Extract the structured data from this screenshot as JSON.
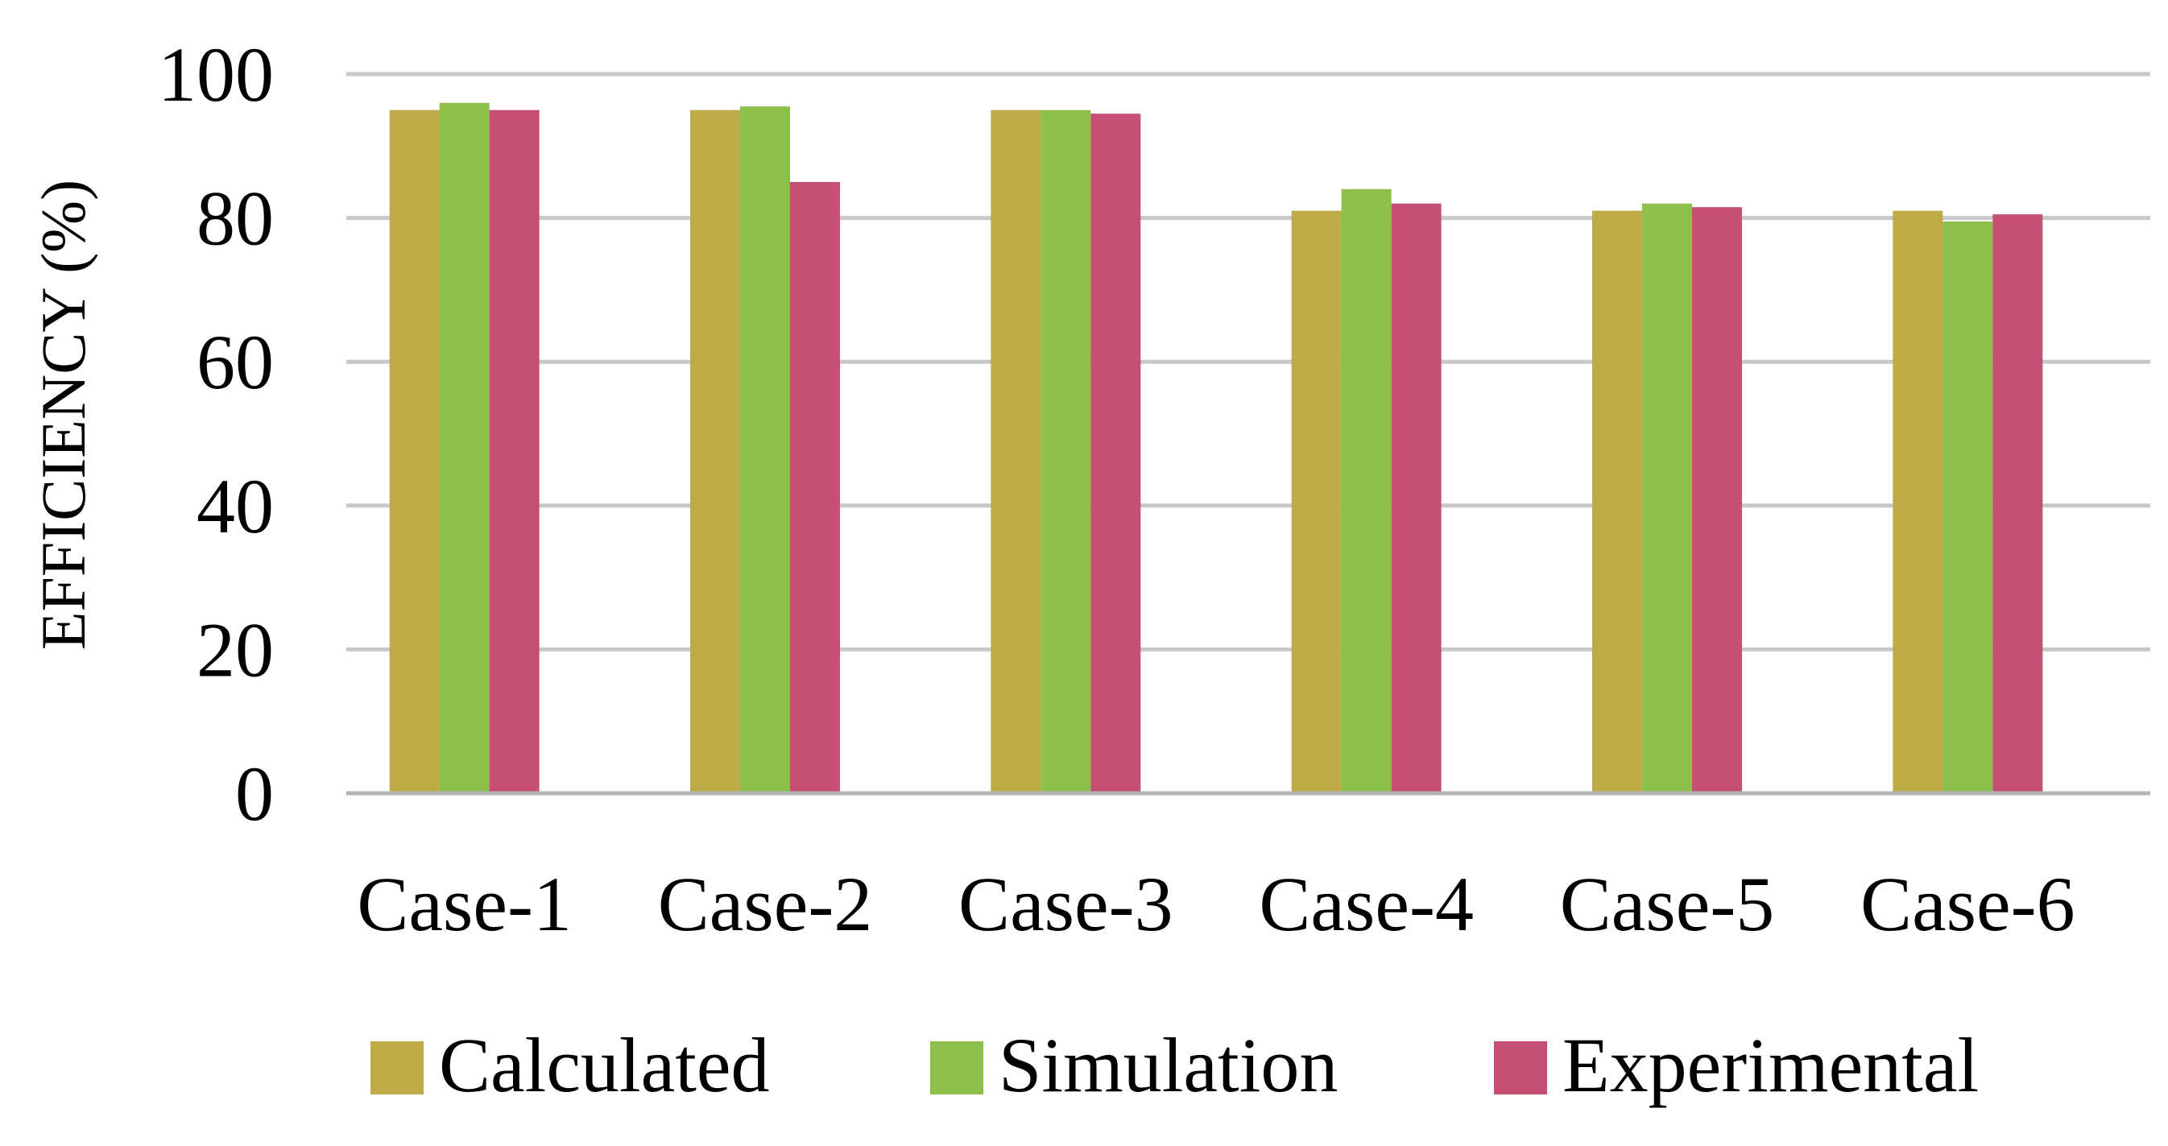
{
  "chart_data": {
    "type": "bar",
    "title": "",
    "xlabel": "",
    "ylabel": "EFFICIENCY (%)",
    "ylim": [
      0,
      100
    ],
    "yticks": [
      0,
      20,
      40,
      60,
      80,
      100
    ],
    "grid": true,
    "legend_position": "bottom",
    "categories": [
      "Case-1",
      "Case-2",
      "Case-3",
      "Case-4",
      "Case-5",
      "Case-6"
    ],
    "series": [
      {
        "name": "Calculated",
        "color": "#bfaa48",
        "values": [
          95,
          95,
          95,
          81,
          81,
          81
        ]
      },
      {
        "name": "Simulation",
        "color": "#8cc04a",
        "values": [
          96,
          95.5,
          95,
          84,
          82,
          79.5
        ]
      },
      {
        "name": "Experimental",
        "color": "#c55074",
        "values": [
          95,
          85,
          94.5,
          82,
          81.5,
          80.5
        ]
      }
    ]
  }
}
